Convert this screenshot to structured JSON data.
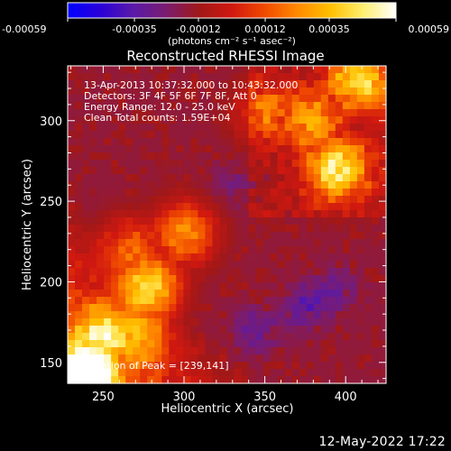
{
  "chart_data": {
    "type": "heatmap",
    "title": "Reconstructed RHESSI Image",
    "xlabel": "Heliocentric X (arcsec)",
    "ylabel": "Heliocentric Y (arcsec)",
    "xlim": [
      228,
      425
    ],
    "ylim": [
      137,
      334
    ],
    "xticks": [
      250,
      300,
      350,
      400
    ],
    "yticks": [
      150,
      200,
      250,
      300
    ],
    "colorbar": {
      "ticks": [
        "-0.00059",
        "-0.00035",
        "-0.00012",
        "0.00012",
        "0.00035",
        "0.00059"
      ],
      "tick_values": [
        -0.00059,
        -0.00035,
        -0.00012,
        0.00012,
        0.00035,
        0.00059
      ],
      "range": [
        -0.00059,
        0.00059
      ],
      "unit_label": "(photons cm⁻² s⁻¹ asec⁻²)",
      "colormap": [
        "#0000ff",
        "#2a00d8",
        "#5a1aa8",
        "#7a1c70",
        "#a01818",
        "#d01810",
        "#f04a00",
        "#ff8a00",
        "#ffc000",
        "#ffef70",
        "#ffffff"
      ]
    },
    "annotations": [
      "13-Apr-2013 10:37:32.000 to 10:43:32.000",
      "Detectors: 3F 4F 5F 6F 7F 8F, Att 0",
      "Energy Range: 12.0 - 25.0 keV",
      "Clean     Total counts: 1.59E+04"
    ],
    "peak_label": "Location of Peak = [239,141]",
    "bright_regions": [
      {
        "x": 240,
        "y": 145,
        "level": 0.95
      },
      {
        "x": 252,
        "y": 168,
        "level": 0.75
      },
      {
        "x": 278,
        "y": 198,
        "level": 0.85
      },
      {
        "x": 268,
        "y": 220,
        "level": 0.65
      },
      {
        "x": 300,
        "y": 230,
        "level": 0.7
      },
      {
        "x": 408,
        "y": 325,
        "level": 0.8
      },
      {
        "x": 395,
        "y": 270,
        "level": 0.85
      },
      {
        "x": 378,
        "y": 300,
        "level": 0.7
      },
      {
        "x": 350,
        "y": 305,
        "level": 0.6
      },
      {
        "x": 270,
        "y": 168,
        "level": 0.7
      }
    ],
    "dim_regions": [
      {
        "x": 375,
        "y": 185,
        "level": 0.2
      },
      {
        "x": 345,
        "y": 170,
        "level": 0.22
      },
      {
        "x": 395,
        "y": 195,
        "level": 0.25
      },
      {
        "x": 330,
        "y": 260,
        "level": 0.28
      }
    ]
  },
  "footer": {
    "timestamp": "12-May-2022 17:22"
  }
}
